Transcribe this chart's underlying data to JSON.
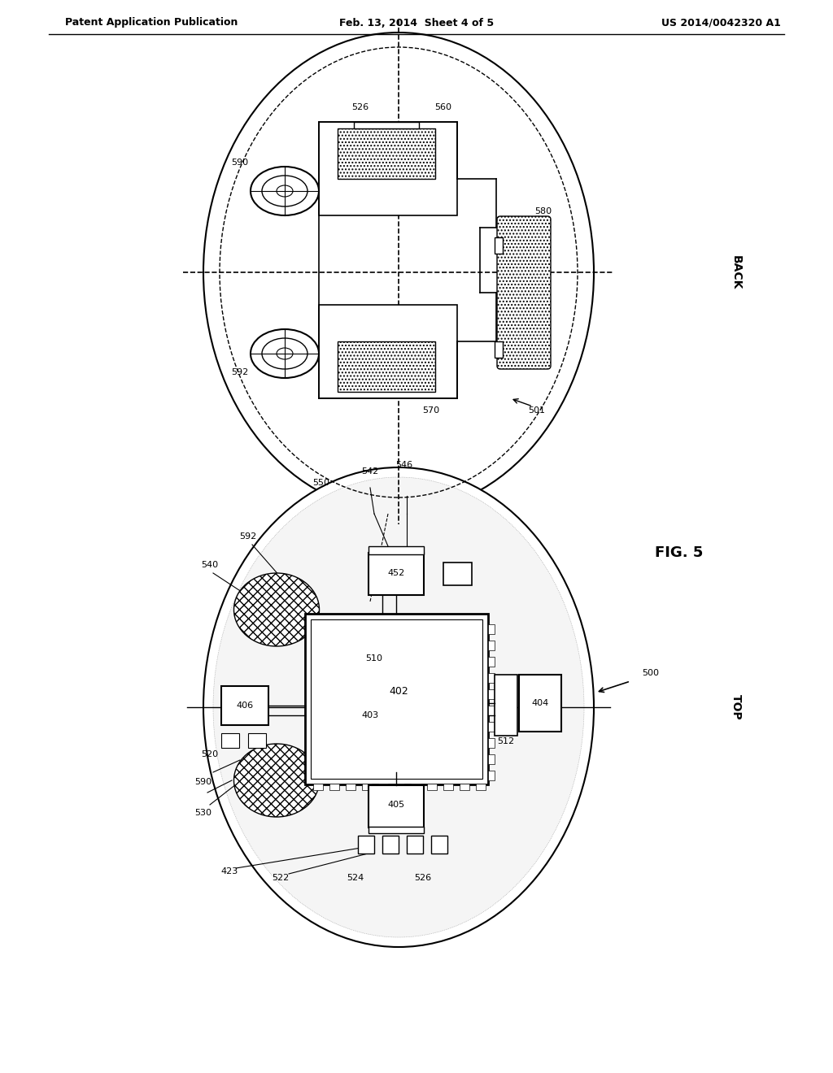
{
  "header_left": "Patent Application Publication",
  "header_mid": "Feb. 13, 2014  Sheet 4 of 5",
  "header_right": "US 2014/0042320 A1",
  "fig_label": "FIG. 5",
  "back_label": "BACK",
  "top_label": "TOP",
  "bg_color": "#ffffff",
  "line_color": "#000000"
}
